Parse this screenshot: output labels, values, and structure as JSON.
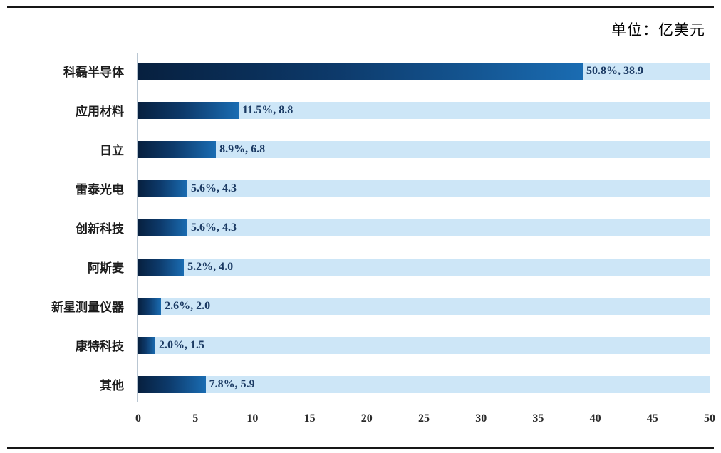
{
  "unit_label": "单位：亿美元",
  "chart_data": {
    "type": "bar",
    "orientation": "horizontal",
    "title": "",
    "unit": "亿美元",
    "categories": [
      "科磊半导体",
      "应用材料",
      "日立",
      "雷泰光电",
      "创新科技",
      "阿斯麦",
      "新星测量仪器",
      "康特科技",
      "其他"
    ],
    "series": [
      {
        "name": "market_share_percent",
        "values": [
          50.8,
          11.5,
          8.9,
          5.6,
          5.6,
          5.2,
          2.6,
          2.0,
          7.8
        ]
      },
      {
        "name": "value_yi_usd",
        "values": [
          38.9,
          8.8,
          6.8,
          4.3,
          4.3,
          4.0,
          2.0,
          1.5,
          5.9
        ]
      }
    ],
    "bar_labels": [
      "50.8%, 38.9",
      "11.5%, 8.8",
      "8.9%, 6.8",
      "5.6%, 4.3",
      "5.6%, 4.3",
      "5.2%, 4.0",
      "2.6%, 2.0",
      "2.0%, 1.5",
      "7.8%, 5.9"
    ],
    "xlim": [
      0,
      50
    ],
    "x_ticks": [
      0,
      5,
      10,
      15,
      20,
      25,
      30,
      35,
      40,
      45,
      50
    ],
    "grid": false,
    "legend": "none",
    "colors": {
      "bar_gradient_start": "#07203f",
      "bar_gradient_end": "#1a6cb2",
      "track": "#cde6f7",
      "value_text": "#1b3a63",
      "border_rule": "#161616"
    }
  }
}
